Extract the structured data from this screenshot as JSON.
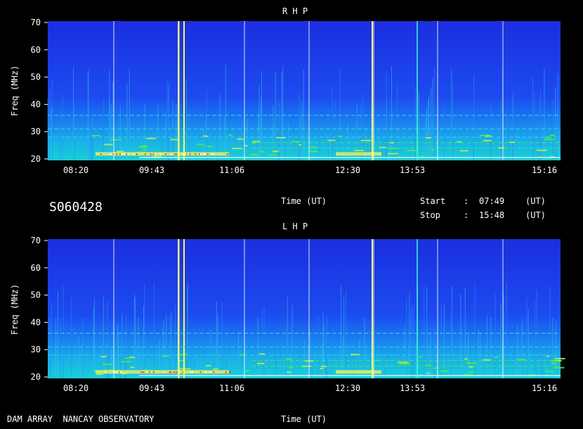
{
  "chart_data": [
    {
      "type": "heatmap",
      "title": "R H P",
      "xlabel": "Time (UT)",
      "ylabel": "Freq (MHz)",
      "x_ticks": [
        "08:20",
        "09:43",
        "11:06",
        "12:30",
        "13:53",
        "15:16"
      ],
      "y_ticks": [
        20,
        30,
        40,
        50,
        60,
        70
      ],
      "ylim": [
        20,
        70
      ],
      "time_range": [
        "07:49",
        "15:48"
      ],
      "colors": {
        "background": "#1a35e8",
        "low_band": "#19c6e8",
        "burst": "#ffff40"
      }
    },
    {
      "type": "heatmap",
      "title": "L H P",
      "xlabel": "Time (UT)",
      "ylabel": "Freq (MHz)",
      "x_ticks": [
        "08:20",
        "09:43",
        "11:06",
        "12:30",
        "13:53",
        "15:16"
      ],
      "y_ticks": [
        20,
        30,
        40,
        50,
        60,
        70
      ],
      "ylim": [
        20,
        70
      ],
      "time_range": [
        "07:49",
        "15:48"
      ],
      "colors": {
        "background": "#1a35e8",
        "low_band": "#19c6e8",
        "burst": "#ffff40"
      }
    }
  ],
  "header": {
    "date_code": "S060428",
    "time_label": "Time (UT)",
    "start_label": "Start",
    "stop_label": "Stop",
    "sep": ":",
    "start_value": "07:49",
    "stop_value": "15:48",
    "unit": "(UT)"
  },
  "footer": {
    "observatory": "DAM ARRAY  NANCAY OBSERVATORY",
    "time_label": "Time (UT)"
  }
}
